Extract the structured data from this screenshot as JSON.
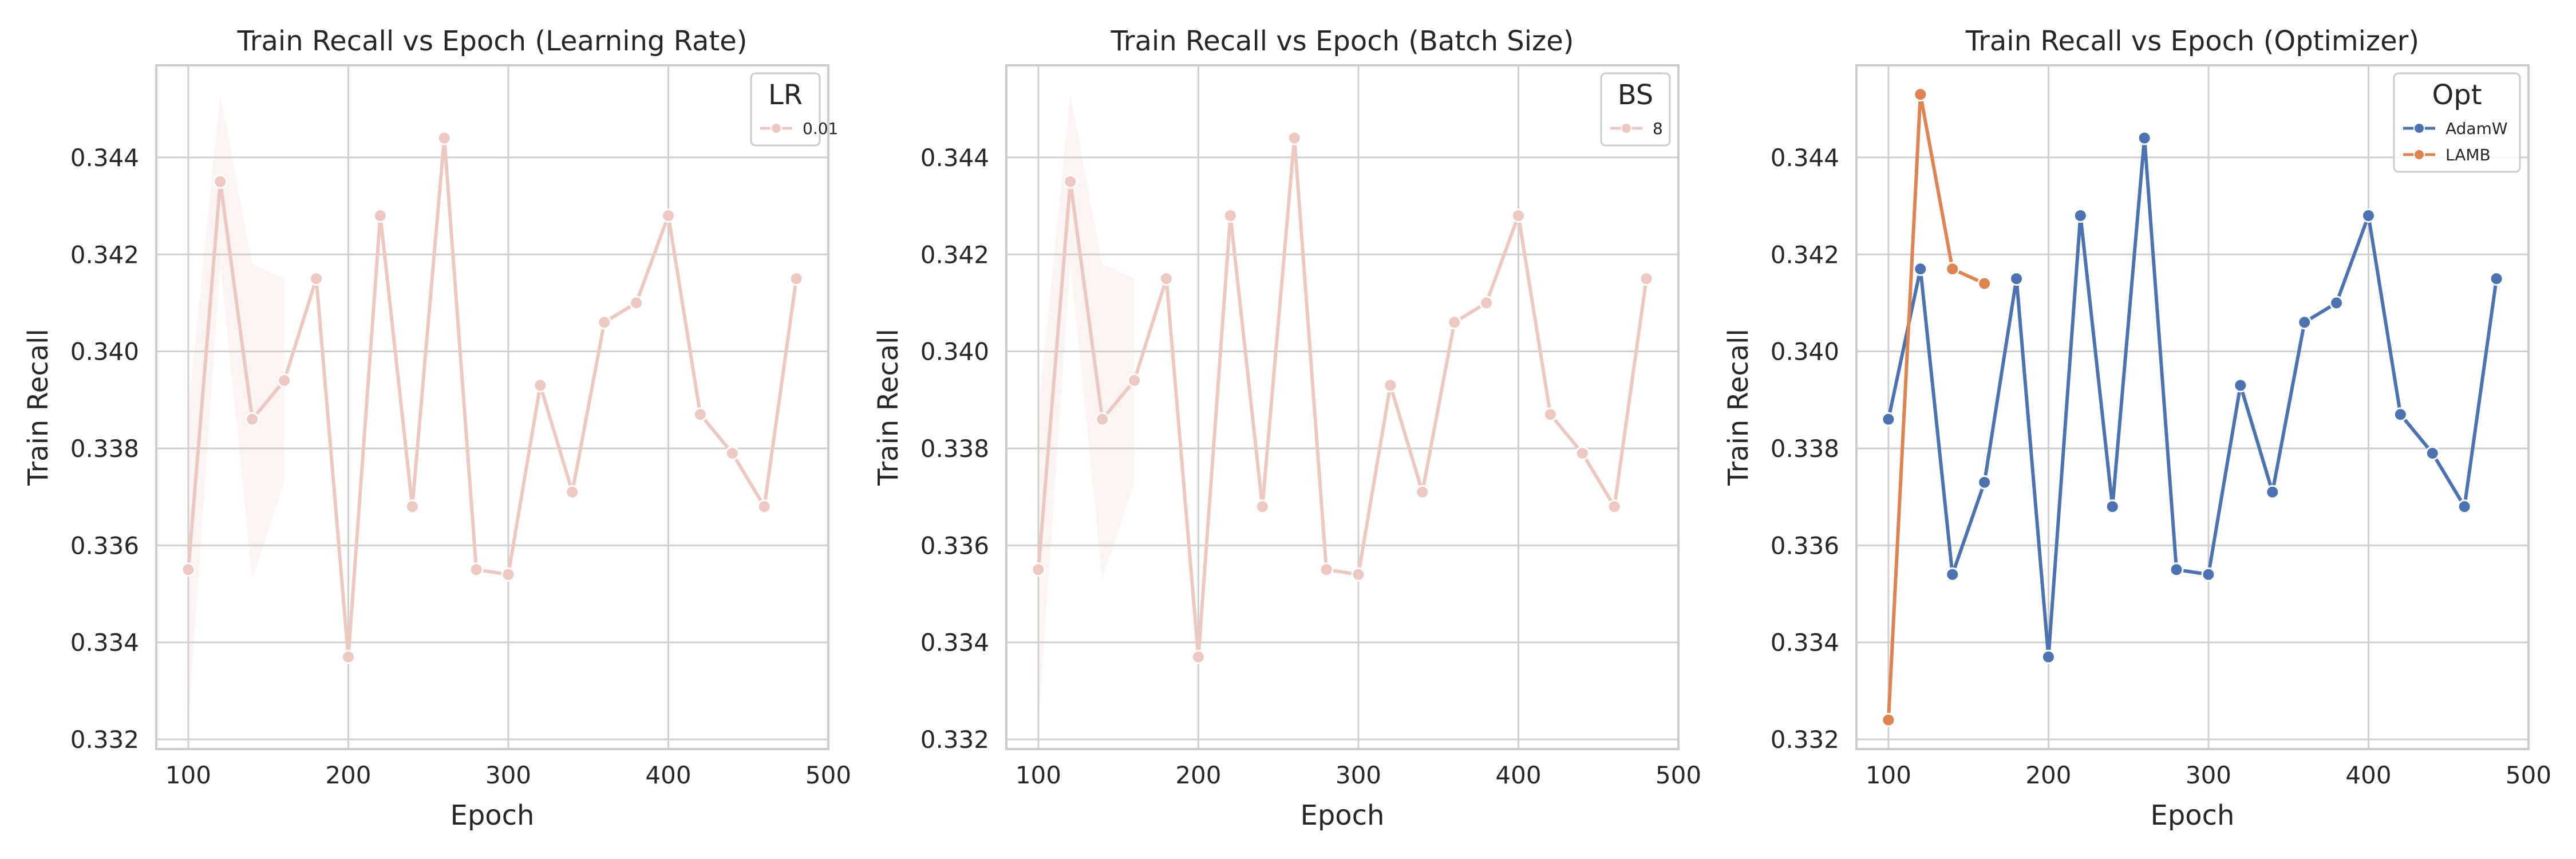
{
  "chart_data": [
    {
      "type": "line",
      "title": "Train Recall vs Epoch (Learning Rate)",
      "xlabel": "Epoch",
      "ylabel": "Train Recall",
      "xlim": [
        80,
        500
      ],
      "ylim": [
        0.3318,
        0.3459
      ],
      "xticks": [
        100,
        200,
        300,
        400,
        500
      ],
      "xtick_labels": [
        "100",
        "200",
        "300",
        "400",
        "500"
      ],
      "yticks": [
        0.332,
        0.334,
        0.336,
        0.338,
        0.34,
        0.342,
        0.344
      ],
      "ytick_labels": [
        "0.332",
        "0.334",
        "0.336",
        "0.338",
        "0.340",
        "0.342",
        "0.344"
      ],
      "grid": true,
      "legend": {
        "title": "LR",
        "position": "top-right"
      },
      "series": [
        {
          "name": "0.01",
          "color": "#ecc8c0",
          "x": [
            100,
            120,
            140,
            160,
            180,
            200,
            220,
            240,
            260,
            280,
            300,
            320,
            340,
            360,
            380,
            400,
            420,
            440,
            460,
            480
          ],
          "y": [
            0.3355,
            0.3435,
            0.3386,
            0.3394,
            0.3415,
            0.3337,
            0.3428,
            0.3368,
            0.3444,
            0.3355,
            0.3354,
            0.3393,
            0.3371,
            0.3406,
            0.341,
            0.3428,
            0.3387,
            0.3379,
            0.3368,
            0.3415
          ],
          "ci_band": {
            "x": [
              100,
              120,
              140,
              160
            ],
            "lower": [
              0.3323,
              0.3418,
              0.3353,
              0.3373
            ],
            "upper": [
              0.3388,
              0.3453,
              0.3418,
              0.3415
            ]
          }
        }
      ]
    },
    {
      "type": "line",
      "title": "Train Recall vs Epoch (Batch Size)",
      "xlabel": "Epoch",
      "ylabel": "Train Recall",
      "xlim": [
        80,
        500
      ],
      "ylim": [
        0.3318,
        0.3459
      ],
      "xticks": [
        100,
        200,
        300,
        400,
        500
      ],
      "xtick_labels": [
        "100",
        "200",
        "300",
        "400",
        "500"
      ],
      "yticks": [
        0.332,
        0.334,
        0.336,
        0.338,
        0.34,
        0.342,
        0.344
      ],
      "ytick_labels": [
        "0.332",
        "0.334",
        "0.336",
        "0.338",
        "0.340",
        "0.342",
        "0.344"
      ],
      "grid": true,
      "legend": {
        "title": "BS",
        "position": "top-right"
      },
      "series": [
        {
          "name": "8",
          "color": "#ecc8c0",
          "x": [
            100,
            120,
            140,
            160,
            180,
            200,
            220,
            240,
            260,
            280,
            300,
            320,
            340,
            360,
            380,
            400,
            420,
            440,
            460,
            480
          ],
          "y": [
            0.3355,
            0.3435,
            0.3386,
            0.3394,
            0.3415,
            0.3337,
            0.3428,
            0.3368,
            0.3444,
            0.3355,
            0.3354,
            0.3393,
            0.3371,
            0.3406,
            0.341,
            0.3428,
            0.3387,
            0.3379,
            0.3368,
            0.3415
          ],
          "ci_band": {
            "x": [
              100,
              120,
              140,
              160
            ],
            "lower": [
              0.3323,
              0.3418,
              0.3353,
              0.3373
            ],
            "upper": [
              0.3388,
              0.3453,
              0.3418,
              0.3415
            ]
          }
        }
      ]
    },
    {
      "type": "line",
      "title": "Train Recall vs Epoch (Optimizer)",
      "xlabel": "Epoch",
      "ylabel": "Train Recall",
      "xlim": [
        80,
        500
      ],
      "ylim": [
        0.3318,
        0.3459
      ],
      "xticks": [
        100,
        200,
        300,
        400,
        500
      ],
      "xtick_labels": [
        "100",
        "200",
        "300",
        "400",
        "500"
      ],
      "yticks": [
        0.332,
        0.334,
        0.336,
        0.338,
        0.34,
        0.342,
        0.344
      ],
      "ytick_labels": [
        "0.332",
        "0.334",
        "0.336",
        "0.338",
        "0.340",
        "0.342",
        "0.344"
      ],
      "grid": true,
      "legend": {
        "title": "Opt",
        "position": "top-right"
      },
      "series": [
        {
          "name": "AdamW",
          "color": "#4c72b0",
          "x": [
            100,
            120,
            140,
            160,
            180,
            200,
            220,
            240,
            260,
            280,
            300,
            320,
            340,
            360,
            380,
            400,
            420,
            440,
            460,
            480
          ],
          "y": [
            0.3386,
            0.3417,
            0.3354,
            0.3373,
            0.3415,
            0.3337,
            0.3428,
            0.3368,
            0.3444,
            0.3355,
            0.3354,
            0.3393,
            0.3371,
            0.3406,
            0.341,
            0.3428,
            0.3387,
            0.3379,
            0.3368,
            0.3415
          ]
        },
        {
          "name": "LAMB",
          "color": "#dd8452",
          "x": [
            100,
            120,
            140,
            160
          ],
          "y": [
            0.3324,
            0.3453,
            0.3417,
            0.3414
          ]
        }
      ]
    }
  ]
}
